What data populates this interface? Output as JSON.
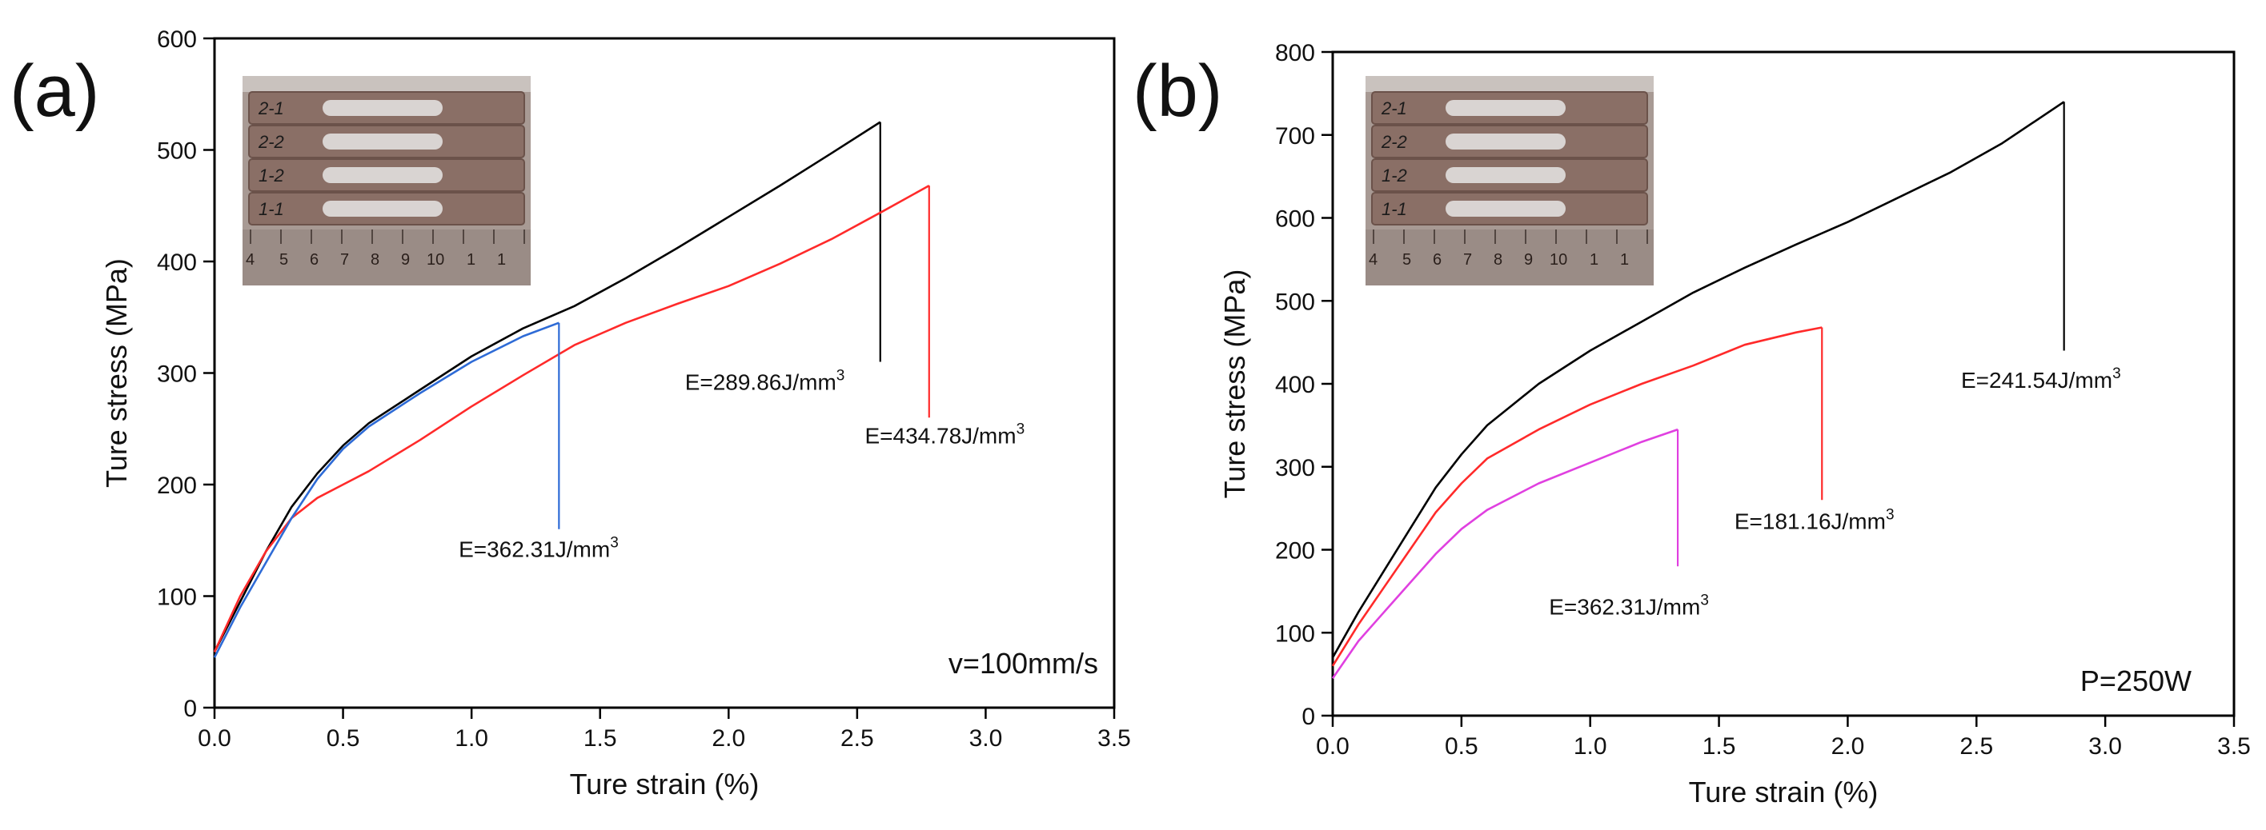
{
  "chart_data": [
    {
      "type": "line",
      "panel_label": "(a)",
      "xlabel": "Ture strain (%)",
      "ylabel": "Ture stress (MPa)",
      "xlim": [
        0,
        3.5
      ],
      "ylim": [
        0,
        600
      ],
      "xticks": [
        "0.0",
        "0.5",
        "1.0",
        "1.5",
        "2.0",
        "2.5",
        "3.0",
        "3.5"
      ],
      "yticks": [
        "0",
        "100",
        "200",
        "300",
        "400",
        "500",
        "600"
      ],
      "condition": "v=100mm/s",
      "inset": {
        "description": "photo of tensile specimens",
        "labels": [
          "2-1",
          "2-2",
          "1-2",
          "1-1"
        ],
        "ruler": [
          "4",
          "5",
          "6",
          "7",
          "8",
          "9",
          "10",
          "1",
          "1"
        ]
      },
      "series": [
        {
          "name": "E=289.86J/mm3",
          "color": "#000000",
          "x": [
            0.0,
            0.1,
            0.2,
            0.3,
            0.4,
            0.5,
            0.6,
            0.8,
            1.0,
            1.2,
            1.4,
            1.6,
            1.8,
            2.0,
            2.2,
            2.4,
            2.59,
            2.59
          ],
          "y": [
            50,
            95,
            140,
            180,
            210,
            235,
            255,
            285,
            315,
            340,
            360,
            385,
            412,
            440,
            468,
            497,
            525,
            310
          ]
        },
        {
          "name": "E=434.78J/mm3",
          "color": "#ff2a2a",
          "x": [
            0.0,
            0.1,
            0.2,
            0.3,
            0.4,
            0.5,
            0.6,
            0.8,
            1.0,
            1.2,
            1.4,
            1.6,
            1.8,
            2.0,
            2.2,
            2.4,
            2.6,
            2.78,
            2.78
          ],
          "y": [
            50,
            100,
            140,
            170,
            188,
            200,
            212,
            240,
            270,
            298,
            325,
            345,
            362,
            378,
            398,
            420,
            445,
            468,
            260
          ]
        },
        {
          "name": "E=362.31J/mm3",
          "color": "#2e6bd6",
          "x": [
            0.0,
            0.1,
            0.2,
            0.3,
            0.4,
            0.5,
            0.6,
            0.8,
            1.0,
            1.2,
            1.34,
            1.34
          ],
          "y": [
            45,
            90,
            130,
            170,
            205,
            232,
            252,
            282,
            310,
            333,
            345,
            160
          ]
        }
      ],
      "annotations": [
        {
          "text": "E=289.86J/mm",
          "sup": "3",
          "x": 1.83,
          "y": 285
        },
        {
          "text": "E=434.78J/mm",
          "sup": "3",
          "x": 2.53,
          "y": 237
        },
        {
          "text": "E=362.31J/mm",
          "sup": "3",
          "x": 0.95,
          "y": 135
        }
      ]
    },
    {
      "type": "line",
      "panel_label": "(b)",
      "xlabel": "Ture strain (%)",
      "ylabel": "Ture stress (MPa)",
      "xlim": [
        0,
        3.5
      ],
      "ylim": [
        0,
        800
      ],
      "xticks": [
        "0.0",
        "0.5",
        "1.0",
        "1.5",
        "2.0",
        "2.5",
        "3.0",
        "3.5"
      ],
      "yticks": [
        "0",
        "100",
        "200",
        "300",
        "400",
        "500",
        "600",
        "700",
        "800"
      ],
      "condition": "P=250W",
      "inset": {
        "description": "photo of tensile specimens",
        "labels": [
          "2-1",
          "2-2",
          "1-2",
          "1-1"
        ],
        "ruler": [
          "4",
          "5",
          "6",
          "7",
          "8",
          "9",
          "10",
          "1",
          "1"
        ]
      },
      "series": [
        {
          "name": "E=241.54J/mm3",
          "color": "#000000",
          "x": [
            0.0,
            0.1,
            0.2,
            0.3,
            0.4,
            0.5,
            0.6,
            0.8,
            1.0,
            1.2,
            1.4,
            1.6,
            1.8,
            2.0,
            2.2,
            2.4,
            2.6,
            2.84,
            2.84
          ],
          "y": [
            70,
            125,
            175,
            225,
            275,
            315,
            350,
            400,
            440,
            475,
            510,
            540,
            568,
            595,
            625,
            655,
            690,
            740,
            440
          ]
        },
        {
          "name": "E=181.16J/mm3",
          "color": "#ff2a2a",
          "x": [
            0.0,
            0.1,
            0.2,
            0.3,
            0.4,
            0.5,
            0.6,
            0.8,
            1.0,
            1.2,
            1.4,
            1.6,
            1.8,
            1.9,
            1.9
          ],
          "y": [
            60,
            110,
            155,
            200,
            245,
            280,
            310,
            345,
            375,
            400,
            422,
            447,
            462,
            468,
            260
          ]
        },
        {
          "name": "E=362.31J/mm3",
          "color": "#e040e0",
          "x": [
            0.0,
            0.1,
            0.2,
            0.3,
            0.4,
            0.5,
            0.6,
            0.8,
            1.0,
            1.2,
            1.34,
            1.34
          ],
          "y": [
            45,
            90,
            125,
            160,
            195,
            225,
            248,
            280,
            305,
            330,
            345,
            180
          ]
        }
      ],
      "annotations": [
        {
          "text": "E=241.54J/mm",
          "sup": "3",
          "x": 2.44,
          "y": 395
        },
        {
          "text": "E=181.16J/mm",
          "sup": "3",
          "x": 1.56,
          "y": 225
        },
        {
          "text": "E=362.31J/mm",
          "sup": "3",
          "x": 0.84,
          "y": 122
        }
      ]
    }
  ]
}
